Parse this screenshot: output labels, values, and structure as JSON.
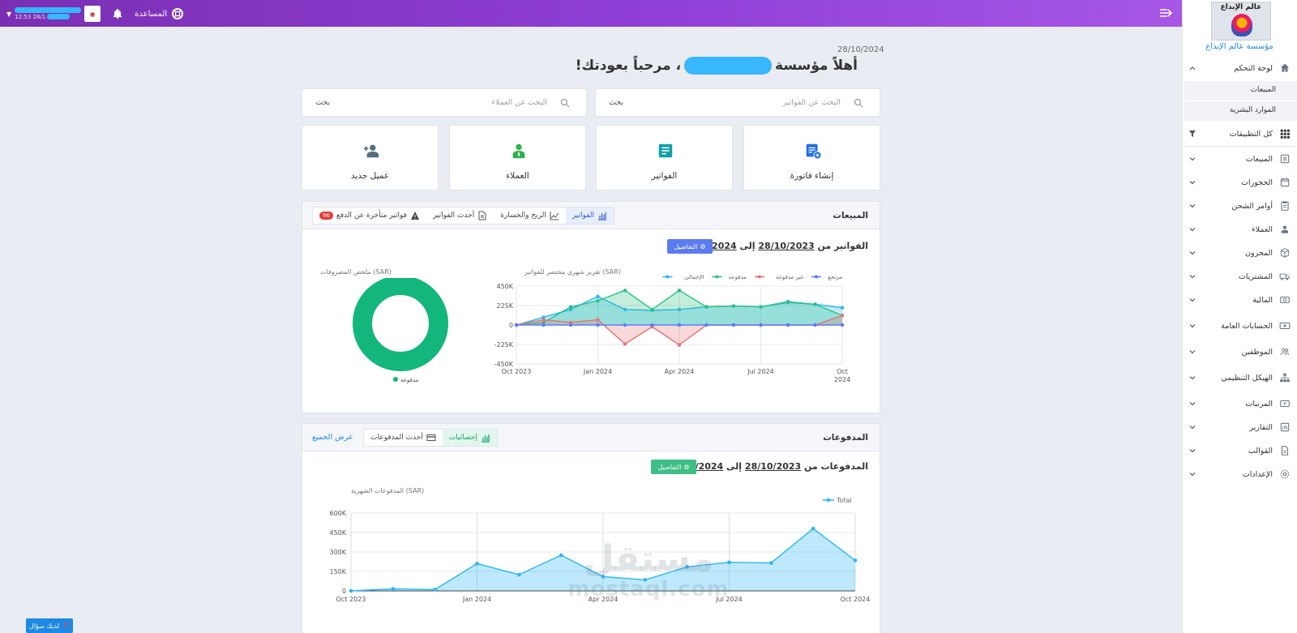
{
  "topbar": {
    "user_time_suffix": "12:53 28/1",
    "help_label": "المساعدة"
  },
  "sidebar": {
    "logo_text": "عالم الإبداع",
    "org_name": "مؤسسة عالم الإبداع",
    "dashboard_label": "لوحة التحكم",
    "sub_items": [
      "المبيعات",
      "الموارد البشرية"
    ],
    "all_apps_label": "كل التطبيقات",
    "items": [
      {
        "label": "المبيعات",
        "icon": "list-icon"
      },
      {
        "label": "الحجوزات",
        "icon": "calendar-icon"
      },
      {
        "label": "أوامر الشحن",
        "icon": "clipboard-icon"
      },
      {
        "label": "العملاء",
        "icon": "users-icon"
      },
      {
        "label": "المخزون",
        "icon": "box-icon"
      },
      {
        "label": "المشتريات",
        "icon": "truck-icon"
      },
      {
        "label": "المالية",
        "icon": "money-icon"
      },
      {
        "label": "الحسابات العامة",
        "icon": "cash-icon"
      },
      {
        "label": "الموظفين",
        "icon": "people-icon"
      },
      {
        "label": "الهيكل التنظيمي",
        "icon": "hierarchy-icon"
      },
      {
        "label": "المرتبات",
        "icon": "payroll-icon"
      },
      {
        "label": "التقارير",
        "icon": "bar-chart-icon"
      },
      {
        "label": "القوالب",
        "icon": "file-icon"
      },
      {
        "label": "الإعدادات",
        "icon": "gear-icon"
      }
    ]
  },
  "main": {
    "date": "28/10/2024",
    "welcome_prefix": "أهلاً مؤسسة",
    "welcome_suffix": "، مرحباً بعودتك!",
    "search_invoices_placeholder": "البحث عن الفواتير",
    "search_clients_placeholder": "البحث عن العملاء",
    "search_label": "بحث",
    "tiles": {
      "create_invoice": "إنشاء فاتورة",
      "invoices": "الفواتير",
      "clients": "العملاء",
      "new_client": "عميل جديد"
    }
  },
  "sales_panel": {
    "title": "المبيعات",
    "tabs": {
      "invoices": "الفواتير",
      "profit_loss": "الربح والخسارة",
      "latest_invoices": "أحدث الفواتير",
      "overdue": "فواتير متأخرة عن الدفع",
      "overdue_count": "96"
    },
    "range_prefix": "الفواتير من",
    "range_from": "28/10/2023",
    "range_sep": "إلى",
    "range_to": "28/10/2024",
    "details_label": "التفاصيل",
    "line_caption": "تقرير شهري مختصر للفواتير (SAR)",
    "donut_caption": "ملخص المصروفات (SAR)",
    "donut_legend": "مدفوعة"
  },
  "payments_panel": {
    "title": "المدفوعات",
    "tabs": {
      "stats": "إحصائيات",
      "latest_payments": "أحدث المدفوعات"
    },
    "view_all": "عرض الجميع",
    "range_prefix": "المدفوعات من",
    "range_from": "28/10/2023",
    "range_sep": "إلى",
    "range_to": "28/10/2024",
    "details_label": "التفاصيل",
    "caption": "المدفوعات الشهرية (SAR)"
  },
  "ask_button": "لديك سؤال",
  "watermark": {
    "line1": "مستقل",
    "line2": "mostaql.com"
  },
  "chart_data": [
    {
      "type": "line",
      "title": "تقرير شهري مختصر للفواتير (SAR)",
      "x_ticks": [
        "Oct 2023",
        "Jan 2024",
        "Apr 2024",
        "Jul 2024",
        "Oct 2024"
      ],
      "y_ticks": [
        "450K",
        "225K",
        "0",
        "-225K",
        "-450K"
      ],
      "ylim": [
        -450000,
        450000
      ],
      "x_index_range": [
        0,
        12
      ],
      "legend_position": "top-right",
      "colors": {
        "total": "#29b6f6",
        "paid": "#26c281",
        "unpaid": "#e57373",
        "returned": "#5c7cfa"
      },
      "series": [
        {
          "name": "الإجمالي",
          "key": "total",
          "values": [
            0,
            90000,
            180000,
            330000,
            180000,
            170000,
            180000,
            210000,
            220000,
            210000,
            260000,
            240000,
            200000
          ]
        },
        {
          "name": "مدفوعة",
          "key": "paid",
          "values": [
            0,
            30000,
            210000,
            280000,
            400000,
            180000,
            400000,
            210000,
            220000,
            210000,
            270000,
            240000,
            110000
          ]
        },
        {
          "name": "غير مدفوعة",
          "key": "unpaid",
          "values": [
            0,
            60000,
            30000,
            60000,
            -220000,
            -20000,
            -230000,
            0,
            0,
            0,
            0,
            0,
            110000
          ]
        },
        {
          "name": "مرتجع",
          "key": "returned",
          "values": [
            0,
            0,
            0,
            0,
            0,
            0,
            0,
            0,
            0,
            0,
            0,
            0,
            0
          ]
        }
      ]
    },
    {
      "type": "pie",
      "title": "ملخص المصروفات (SAR)",
      "slices": [
        {
          "name": "مدفوعة",
          "value": 100,
          "color": "#13b67b"
        }
      ]
    },
    {
      "type": "area",
      "title": "المدفوعات الشهرية (SAR)",
      "x_ticks": [
        "Oct 2023",
        "Jan 2024",
        "Apr 2024",
        "Jul 2024",
        "Oct 2024"
      ],
      "y_ticks": [
        "600K",
        "450K",
        "300K",
        "150K",
        "0"
      ],
      "ylim": [
        0,
        600000
      ],
      "x_index_range": [
        0,
        12
      ],
      "series": [
        {
          "name": "Total",
          "values": [
            0,
            15000,
            10000,
            210000,
            125000,
            275000,
            110000,
            85000,
            185000,
            220000,
            215000,
            480000,
            235000
          ],
          "color": "#29b6f6"
        }
      ]
    }
  ]
}
